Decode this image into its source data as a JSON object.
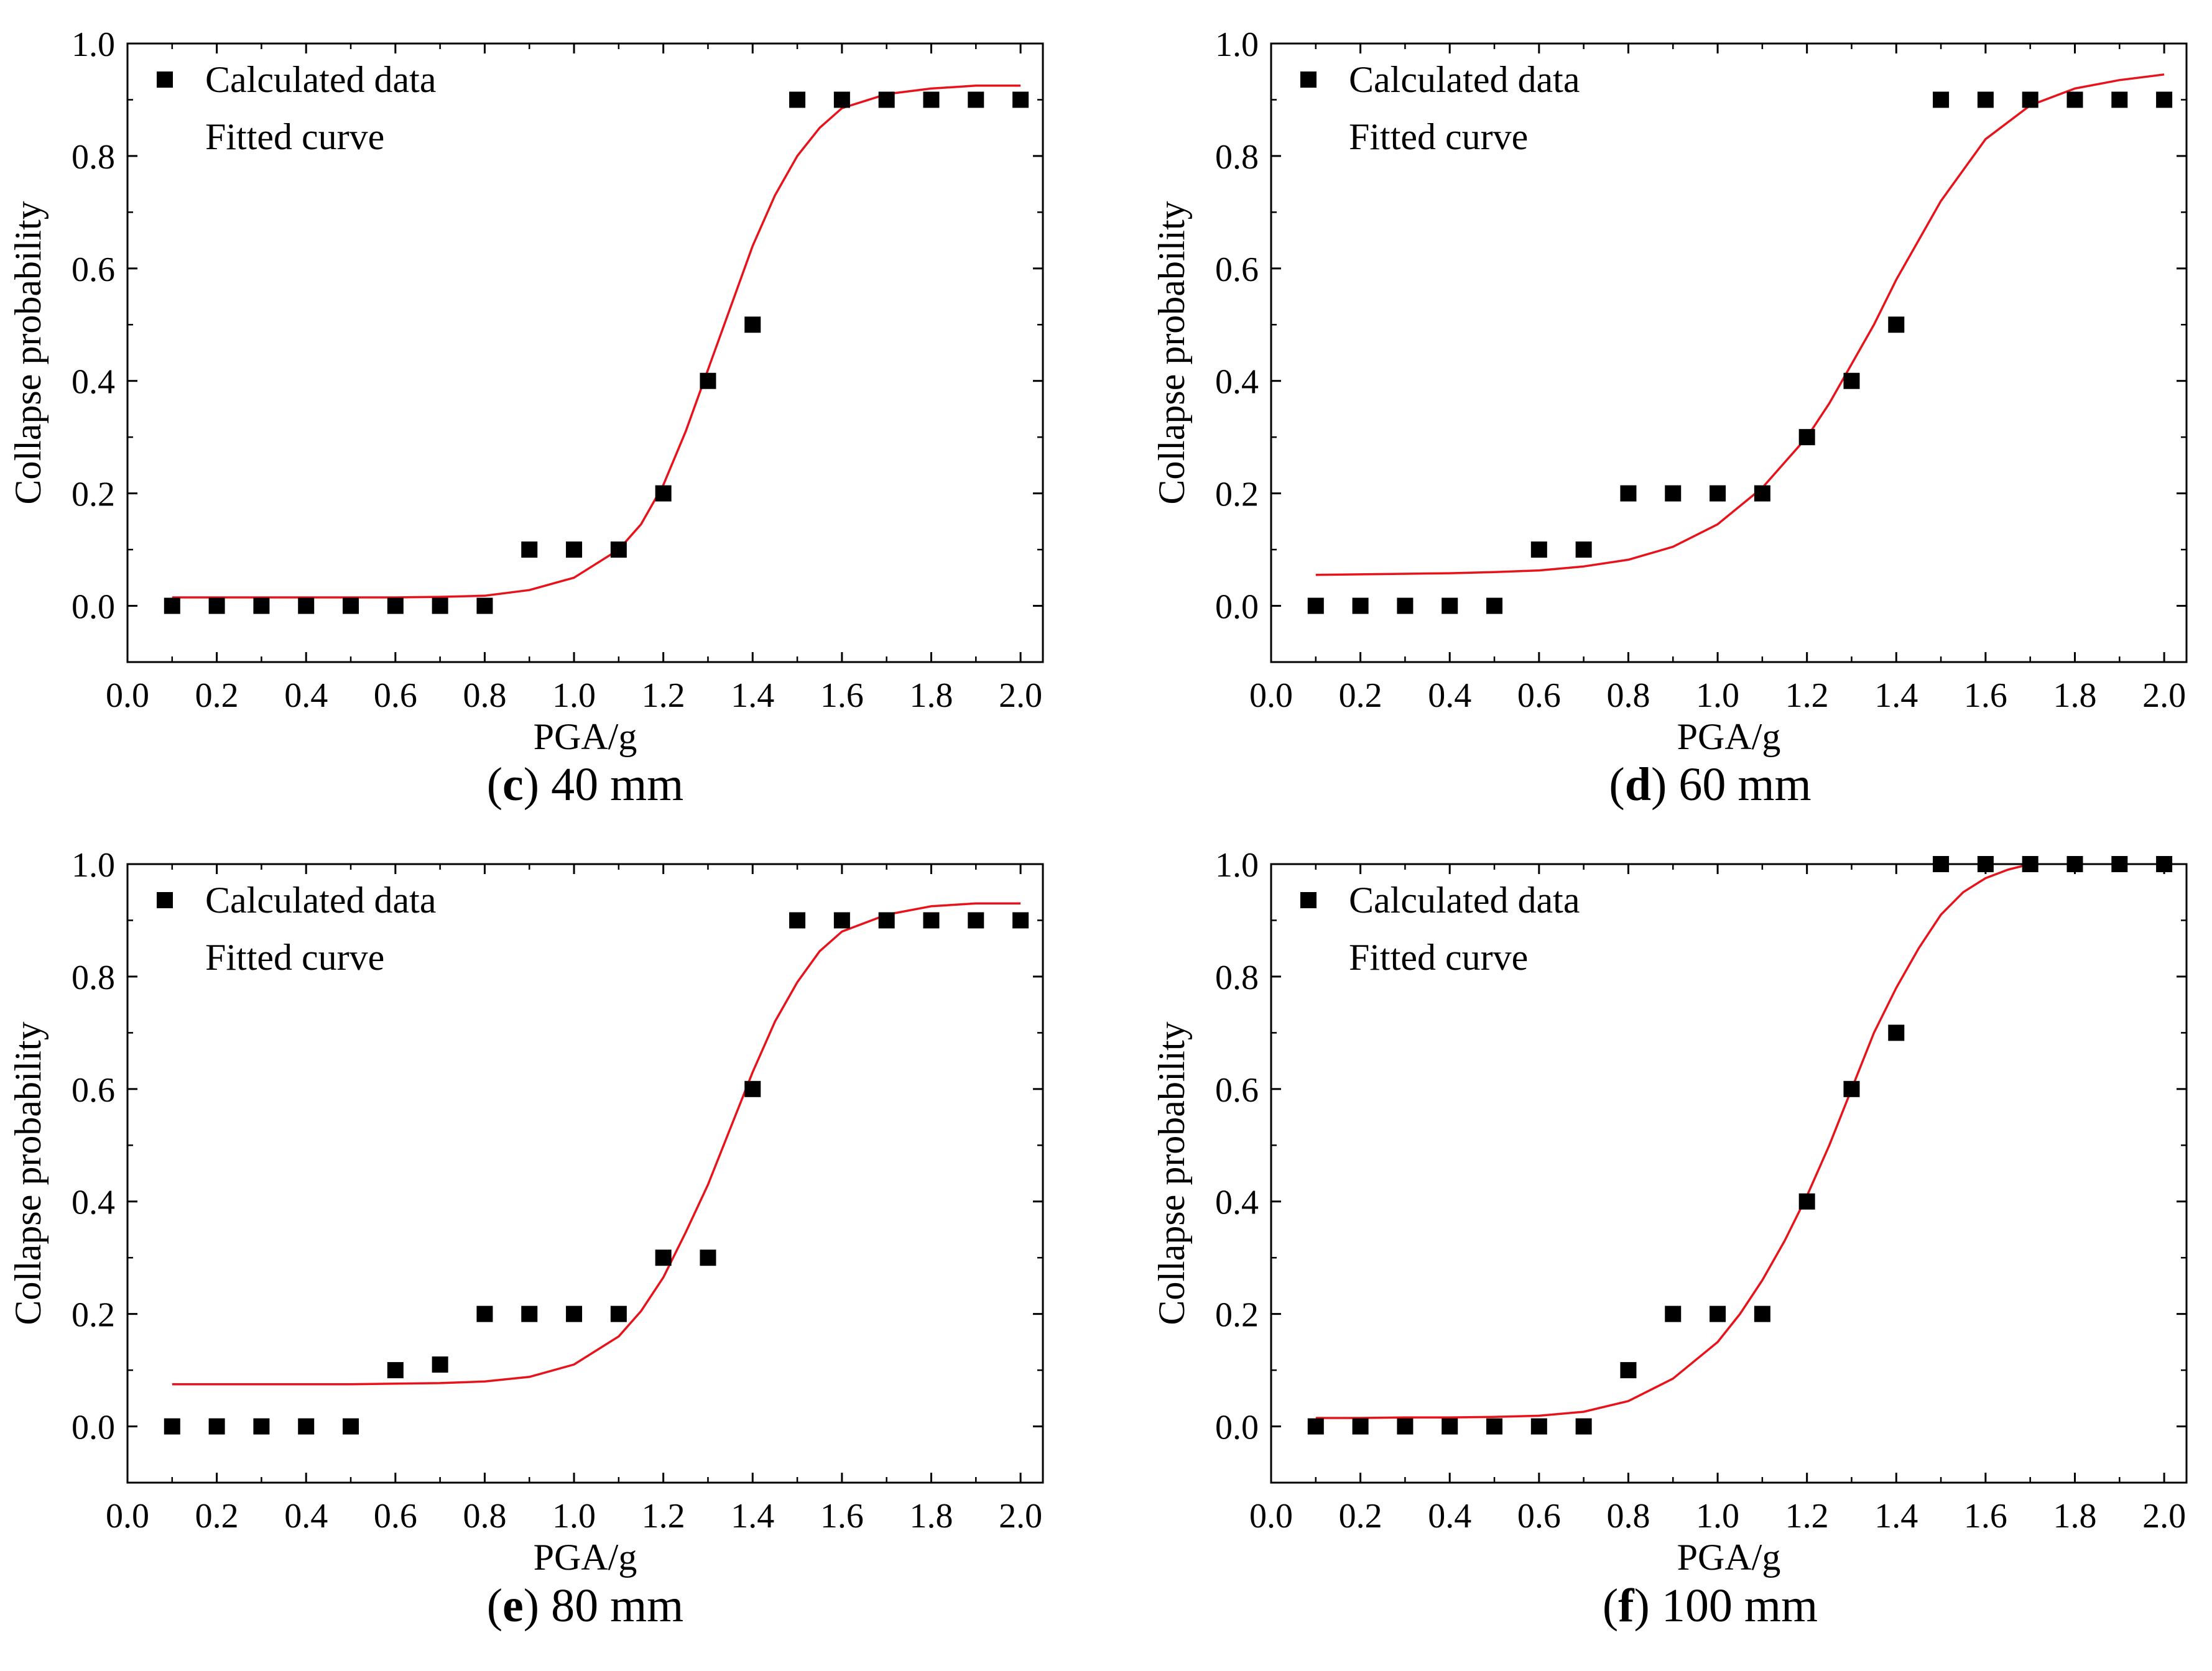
{
  "figure": {
    "colors": {
      "marker": "#000000",
      "curve": "#e8121a",
      "axis": "#000000",
      "background": "#ffffff"
    }
  },
  "chart_data": [
    {
      "type": "scatter",
      "panel_id": "c",
      "caption": {
        "label": "c",
        "text": "40 mm",
        "open": "(",
        "close": ")"
      },
      "xlabel": "PGA/g",
      "ylabel": "Collapse probability",
      "xlim": [
        0.0,
        2.05
      ],
      "ylim": [
        -0.1,
        1.0
      ],
      "xticks": [
        "0.0",
        "0.2",
        "0.4",
        "0.6",
        "0.8",
        "1.0",
        "1.2",
        "1.4",
        "1.6",
        "1.8",
        "2.0"
      ],
      "yticks": [
        "0.0",
        "0.2",
        "0.4",
        "0.6",
        "0.8",
        "1.0"
      ],
      "legend": {
        "position": "top-left",
        "entries": [
          "Calculated data",
          "Fitted curve"
        ]
      },
      "series": [
        {
          "name": "Calculated data",
          "kind": "markers",
          "x": [
            0.1,
            0.2,
            0.3,
            0.4,
            0.5,
            0.6,
            0.7,
            0.8,
            0.9,
            1.0,
            1.1,
            1.2,
            1.3,
            1.4,
            1.5,
            1.6,
            1.7,
            1.8,
            1.9,
            2.0
          ],
          "y": [
            0,
            0,
            0,
            0,
            0,
            0,
            0,
            0,
            0.1,
            0.1,
            0.1,
            0.2,
            0.4,
            0.5,
            0.9,
            0.9,
            0.9,
            0.9,
            0.9,
            0.9
          ]
        },
        {
          "name": "Fitted curve",
          "kind": "line",
          "x": [
            0.1,
            0.2,
            0.3,
            0.4,
            0.5,
            0.6,
            0.7,
            0.8,
            0.9,
            1.0,
            1.1,
            1.15,
            1.2,
            1.25,
            1.3,
            1.35,
            1.4,
            1.45,
            1.5,
            1.55,
            1.6,
            1.7,
            1.8,
            1.9,
            2.0
          ],
          "y": [
            0.015,
            0.015,
            0.015,
            0.015,
            0.015,
            0.015,
            0.016,
            0.018,
            0.028,
            0.05,
            0.1,
            0.145,
            0.215,
            0.31,
            0.42,
            0.53,
            0.64,
            0.73,
            0.8,
            0.85,
            0.885,
            0.91,
            0.92,
            0.925,
            0.925
          ]
        }
      ]
    },
    {
      "type": "scatter",
      "panel_id": "d",
      "caption": {
        "label": "d",
        "text": "60 mm",
        "open": "(",
        "close": ")"
      },
      "xlabel": "PGA/g",
      "ylabel": "Collapse probability",
      "xlim": [
        0.0,
        2.05
      ],
      "ylim": [
        -0.1,
        1.0
      ],
      "xticks": [
        "0.0",
        "0.2",
        "0.4",
        "0.6",
        "0.8",
        "1.0",
        "1.2",
        "1.4",
        "1.6",
        "1.8",
        "2.0"
      ],
      "yticks": [
        "0.0",
        "0.2",
        "0.4",
        "0.6",
        "0.8",
        "1.0"
      ],
      "legend": {
        "position": "top-left",
        "entries": [
          "Calculated data",
          "Fitted curve"
        ]
      },
      "series": [
        {
          "name": "Calculated data",
          "kind": "markers",
          "x": [
            0.1,
            0.2,
            0.3,
            0.4,
            0.5,
            0.6,
            0.7,
            0.8,
            0.9,
            1.0,
            1.1,
            1.2,
            1.3,
            1.4,
            1.5,
            1.6,
            1.7,
            1.8,
            1.9,
            2.0
          ],
          "y": [
            0,
            0,
            0,
            0,
            0,
            0.1,
            0.1,
            0.2,
            0.2,
            0.2,
            0.2,
            0.3,
            0.4,
            0.5,
            0.9,
            0.9,
            0.9,
            0.9,
            0.9,
            0.9
          ]
        },
        {
          "name": "Fitted curve",
          "kind": "line",
          "x": [
            0.1,
            0.2,
            0.3,
            0.4,
            0.5,
            0.6,
            0.7,
            0.8,
            0.9,
            1.0,
            1.1,
            1.2,
            1.25,
            1.3,
            1.35,
            1.4,
            1.5,
            1.6,
            1.7,
            1.8,
            1.9,
            2.0
          ],
          "y": [
            0.055,
            0.056,
            0.057,
            0.058,
            0.06,
            0.063,
            0.07,
            0.082,
            0.105,
            0.145,
            0.21,
            0.3,
            0.36,
            0.43,
            0.5,
            0.58,
            0.72,
            0.83,
            0.89,
            0.92,
            0.935,
            0.945
          ]
        }
      ]
    },
    {
      "type": "scatter",
      "panel_id": "e",
      "caption": {
        "label": "e",
        "text": "80 mm",
        "open": "(",
        "close": ")"
      },
      "xlabel": "PGA/g",
      "ylabel": "Collapse probability",
      "xlim": [
        0.0,
        2.05
      ],
      "ylim": [
        -0.1,
        1.0
      ],
      "xticks": [
        "0.0",
        "0.2",
        "0.4",
        "0.6",
        "0.8",
        "1.0",
        "1.2",
        "1.4",
        "1.6",
        "1.8",
        "2.0"
      ],
      "yticks": [
        "0.0",
        "0.2",
        "0.4",
        "0.6",
        "0.8",
        "1.0"
      ],
      "legend": {
        "position": "top-left",
        "entries": [
          "Calculated data",
          "Fitted curve"
        ]
      },
      "series": [
        {
          "name": "Calculated data",
          "kind": "markers",
          "x": [
            0.1,
            0.2,
            0.3,
            0.4,
            0.5,
            0.6,
            0.7,
            0.8,
            0.9,
            1.0,
            1.1,
            1.2,
            1.3,
            1.4,
            1.5,
            1.6,
            1.7,
            1.8,
            1.9,
            2.0
          ],
          "y": [
            0,
            0,
            0,
            0,
            0,
            0.1,
            0.11,
            0.2,
            0.2,
            0.2,
            0.2,
            0.3,
            0.3,
            0.6,
            0.9,
            0.9,
            0.9,
            0.9,
            0.9,
            0.9
          ]
        },
        {
          "name": "Fitted curve",
          "kind": "line",
          "x": [
            0.1,
            0.2,
            0.3,
            0.4,
            0.5,
            0.6,
            0.7,
            0.8,
            0.9,
            1.0,
            1.1,
            1.15,
            1.2,
            1.25,
            1.3,
            1.35,
            1.4,
            1.45,
            1.5,
            1.55,
            1.6,
            1.7,
            1.8,
            1.9,
            2.0
          ],
          "y": [
            0.075,
            0.075,
            0.075,
            0.075,
            0.075,
            0.076,
            0.077,
            0.08,
            0.088,
            0.11,
            0.16,
            0.205,
            0.265,
            0.345,
            0.43,
            0.53,
            0.63,
            0.72,
            0.79,
            0.845,
            0.88,
            0.91,
            0.925,
            0.93,
            0.93
          ]
        }
      ]
    },
    {
      "type": "scatter",
      "panel_id": "f",
      "caption": {
        "label": "f",
        "text": "100 mm",
        "open": "(",
        "close": ")"
      },
      "xlabel": "PGA/g",
      "ylabel": "Collapse probability",
      "xlim": [
        0.0,
        2.05
      ],
      "ylim": [
        -0.1,
        1.0
      ],
      "xticks": [
        "0.0",
        "0.2",
        "0.4",
        "0.6",
        "0.8",
        "1.0",
        "1.2",
        "1.4",
        "1.6",
        "1.8",
        "2.0"
      ],
      "yticks": [
        "0.0",
        "0.2",
        "0.4",
        "0.6",
        "0.8",
        "1.0"
      ],
      "legend": {
        "position": "top-left",
        "entries": [
          "Calculated data",
          "Fitted curve"
        ]
      },
      "series": [
        {
          "name": "Calculated data",
          "kind": "markers",
          "x": [
            0.1,
            0.2,
            0.3,
            0.4,
            0.5,
            0.6,
            0.7,
            0.8,
            0.9,
            1.0,
            1.1,
            1.2,
            1.3,
            1.4,
            1.5,
            1.6,
            1.7,
            1.8,
            1.9,
            2.0
          ],
          "y": [
            0,
            0,
            0,
            0,
            0,
            0,
            0,
            0.1,
            0.2,
            0.2,
            0.2,
            0.4,
            0.6,
            0.7,
            1.0,
            1.0,
            1.0,
            1.0,
            1.0,
            1.0
          ]
        },
        {
          "name": "Fitted curve",
          "kind": "line",
          "x": [
            0.1,
            0.2,
            0.3,
            0.4,
            0.5,
            0.6,
            0.7,
            0.8,
            0.9,
            1.0,
            1.05,
            1.1,
            1.15,
            1.2,
            1.25,
            1.3,
            1.35,
            1.4,
            1.45,
            1.5,
            1.55,
            1.6,
            1.65,
            1.7
          ],
          "y": [
            0.015,
            0.015,
            0.016,
            0.016,
            0.017,
            0.019,
            0.026,
            0.045,
            0.085,
            0.15,
            0.2,
            0.26,
            0.33,
            0.41,
            0.5,
            0.6,
            0.7,
            0.78,
            0.85,
            0.91,
            0.95,
            0.975,
            0.99,
            1.0
          ]
        }
      ]
    }
  ]
}
